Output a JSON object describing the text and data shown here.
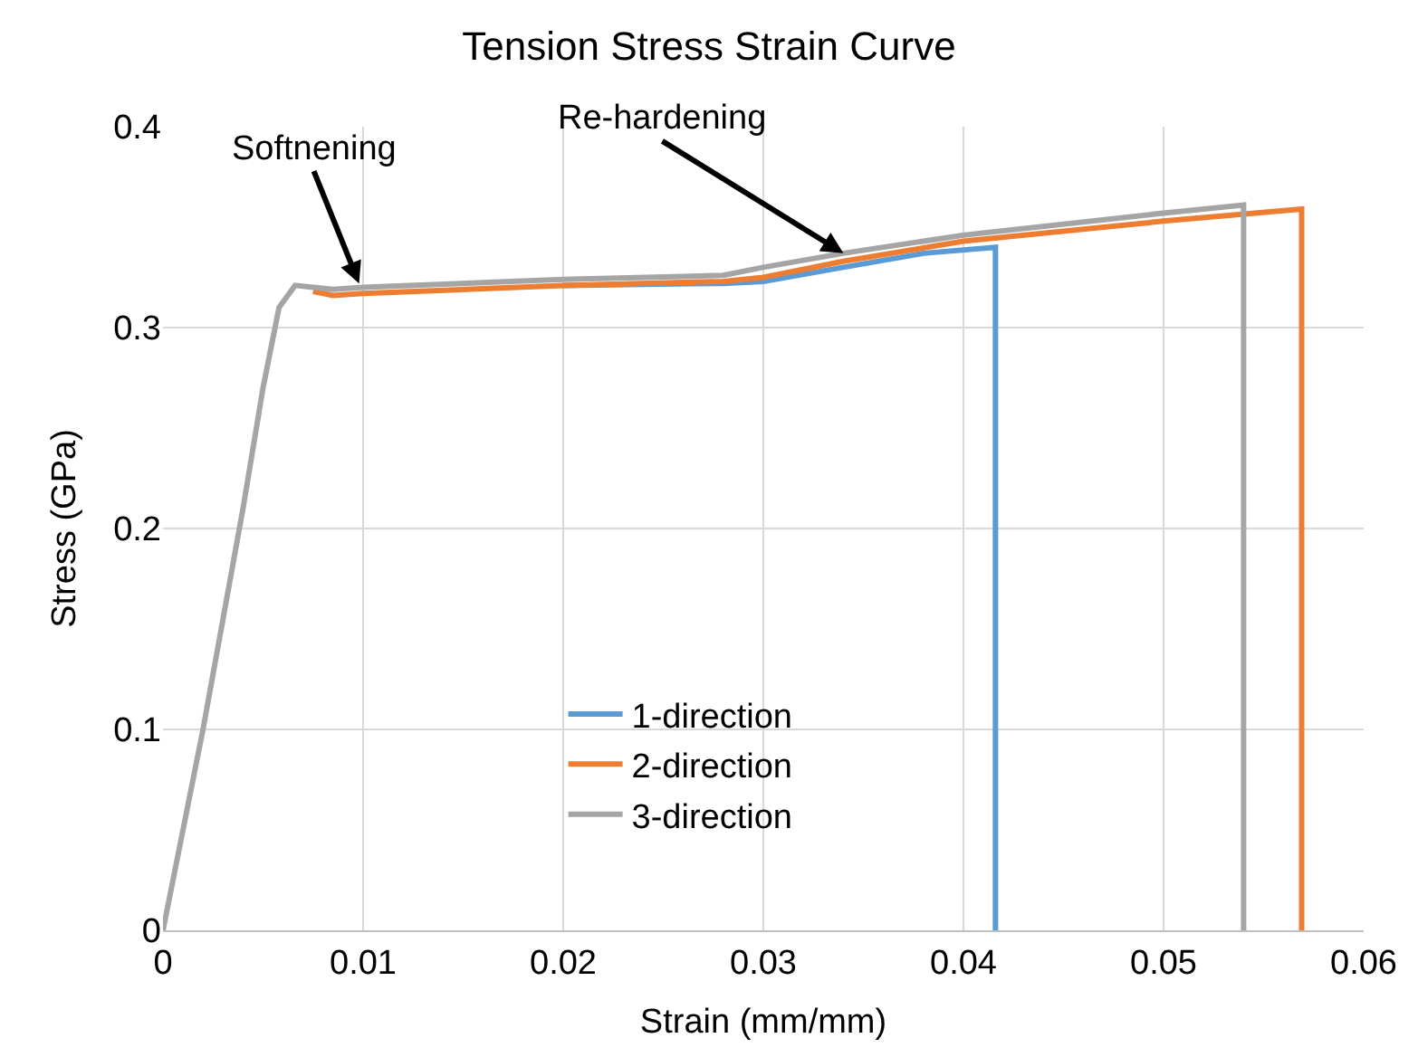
{
  "chart_data": {
    "type": "line",
    "title": "Tension Stress Strain Curve",
    "xlabel": "Strain (mm/mm)",
    "ylabel": "Stress (GPa)",
    "xlim": [
      0,
      0.06
    ],
    "xticks": [
      0,
      0.01,
      0.02,
      0.03,
      0.04,
      0.05,
      0.06
    ],
    "ylim": [
      0,
      0.4
    ],
    "yticks": [
      0,
      0.1,
      0.2,
      0.3,
      0.4
    ],
    "grid": true,
    "legend": "bottom center",
    "marker": "none",
    "line_style": "solid",
    "annotations": [
      {
        "text": "Softnening",
        "x": 0.0098,
        "y": 0.322
      },
      {
        "text": "Re-hardening",
        "x": 0.034,
        "y": 0.337
      }
    ],
    "series": [
      {
        "name": "1-direction",
        "color": "#5b9bd5",
        "x": [
          0.02,
          0.028,
          0.03,
          0.034,
          0.038,
          0.0416,
          0.0416
        ],
        "values": [
          0.321,
          0.322,
          0.323,
          0.33,
          0.337,
          0.34,
          0
        ]
      },
      {
        "name": "2-direction",
        "color": "#ed7d31",
        "x": [
          0.0075,
          0.0085,
          0.01,
          0.02,
          0.028,
          0.03,
          0.034,
          0.04,
          0.05,
          0.0569,
          0.0569
        ],
        "values": [
          0.318,
          0.316,
          0.317,
          0.321,
          0.323,
          0.325,
          0.333,
          0.343,
          0.353,
          0.359,
          0
        ]
      },
      {
        "name": "3-direction",
        "color": "#a5a5a5",
        "x": [
          0,
          0.002,
          0.004,
          0.005,
          0.0058,
          0.0066,
          0.0075,
          0.0085,
          0.01,
          0.02,
          0.028,
          0.03,
          0.034,
          0.04,
          0.05,
          0.054,
          0.054
        ],
        "values": [
          0,
          0.1,
          0.21,
          0.27,
          0.31,
          0.321,
          0.32,
          0.319,
          0.32,
          0.324,
          0.326,
          0.33,
          0.337,
          0.346,
          0.357,
          0.361,
          0
        ]
      }
    ]
  }
}
